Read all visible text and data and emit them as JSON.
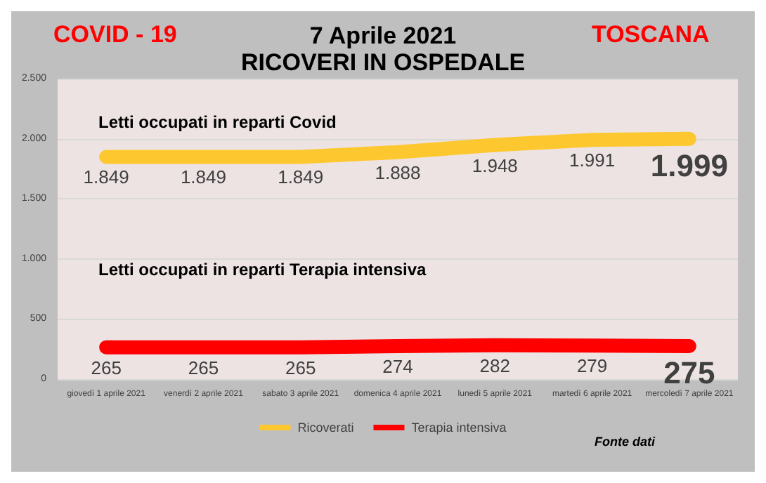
{
  "chart_data": {
    "type": "line",
    "title": "7 Aprile 2021",
    "subtitle": "RICOVERI IN OSPEDALE",
    "categories": [
      "giovedì 1 aprile 2021",
      "venerdì 2 aprile 2021",
      "sabato 3 aprile 2021",
      "domenica 4 aprile 2021",
      "lunedì 5 aprile 2021",
      "martedì 6 aprile 2021",
      "mercoledì 7 aprile 2021"
    ],
    "series": [
      {
        "name": "Ricoverati",
        "color": "#fdc82f",
        "values": [
          1849,
          1849,
          1849,
          1888,
          1948,
          1991,
          1999
        ],
        "value_labels": [
          "1.849",
          "1.849",
          "1.849",
          "1.888",
          "1.948",
          "1.991",
          "1.999"
        ]
      },
      {
        "name": "Terapia intensiva",
        "color": "#ff0000",
        "values": [
          265,
          265,
          265,
          274,
          282,
          279,
          275
        ],
        "value_labels": [
          "265",
          "265",
          "265",
          "274",
          "282",
          "279",
          "275"
        ]
      }
    ],
    "ylim": [
      0,
      2500
    ],
    "yticks": [
      0,
      500,
      {
        "value": 1000,
        "label": "1.000"
      },
      {
        "value": 1500,
        "label": "1.500"
      },
      {
        "value": 2000,
        "label": "2.000"
      },
      {
        "value": 2500,
        "label": "2.500"
      }
    ],
    "grid": "y",
    "legend": "bottom",
    "marker": "none",
    "line_style": "solid",
    "annotations": [
      "COVID - 19",
      "TOSCANA",
      "Letti occupati in reparti Covid",
      "Letti occupati in reparti Terapia intensiva",
      "Fonte dati"
    ]
  }
}
